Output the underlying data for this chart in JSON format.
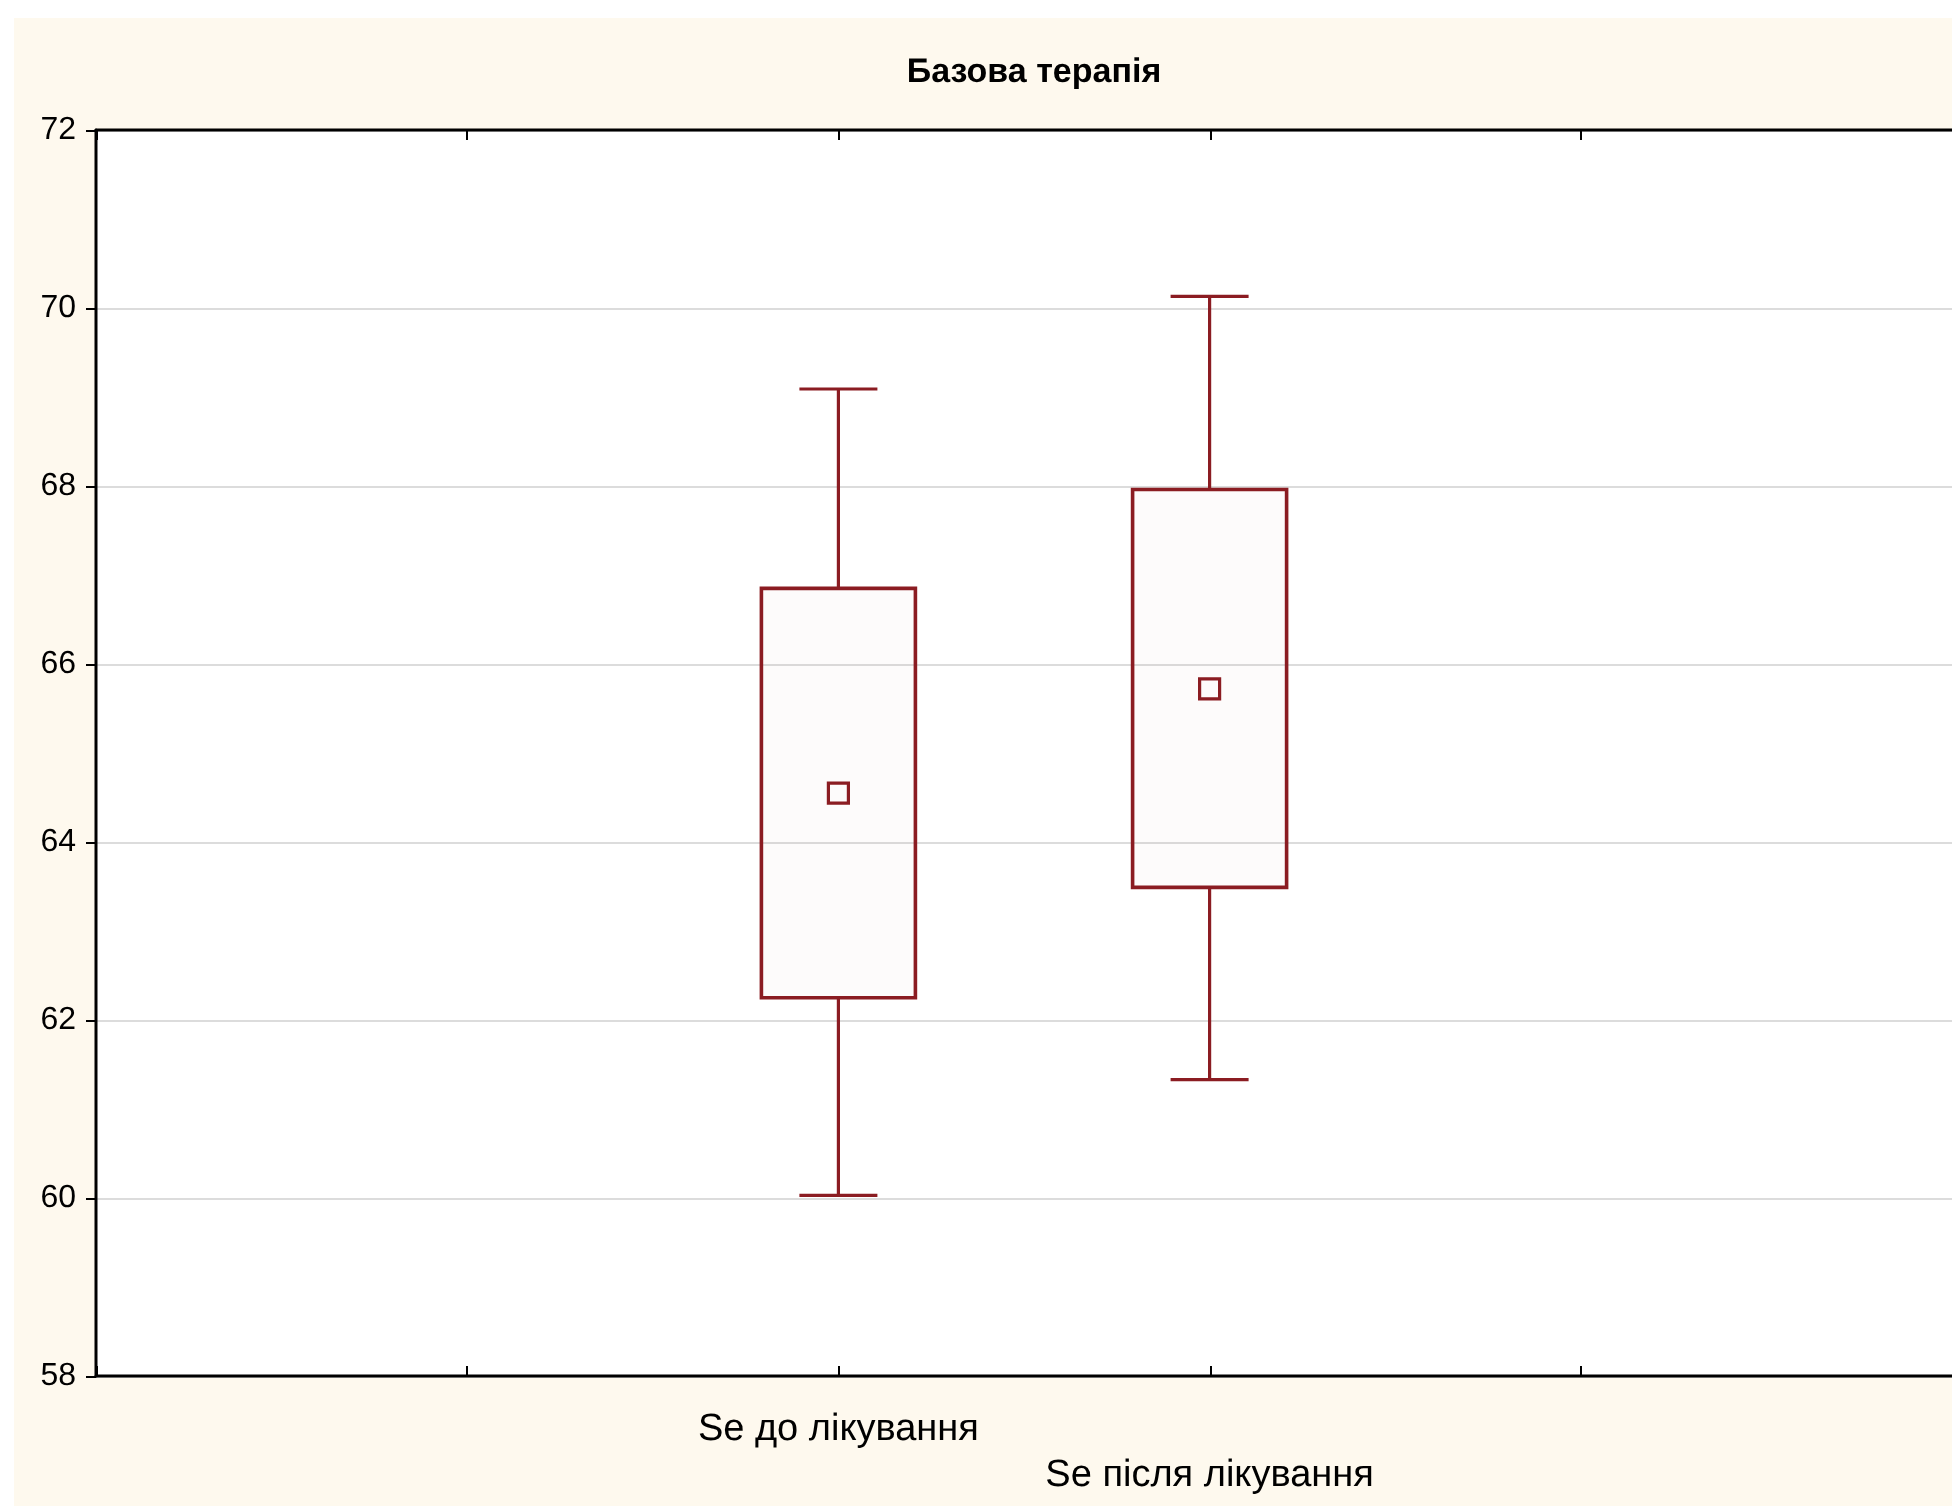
{
  "chart_data": {
    "type": "box",
    "title": "Базова терапія",
    "categories": [
      null,
      null,
      "Se до лікування",
      "Se після лікування",
      null,
      null
    ],
    "boxes": [
      null,
      null,
      {
        "low": 60.03,
        "q1": 62.25,
        "median": 64.55,
        "q3": 66.85,
        "high": 69.09
      },
      {
        "low": 61.33,
        "q1": 63.49,
        "median": 65.72,
        "q3": 67.96,
        "high": 70.13
      },
      null,
      null
    ],
    "color": "#8b1c22",
    "marker": "square",
    "ylim": [
      58,
      72
    ],
    "yticks": [
      58,
      60,
      62,
      64,
      66,
      68,
      70,
      72
    ],
    "grid": "y"
  }
}
